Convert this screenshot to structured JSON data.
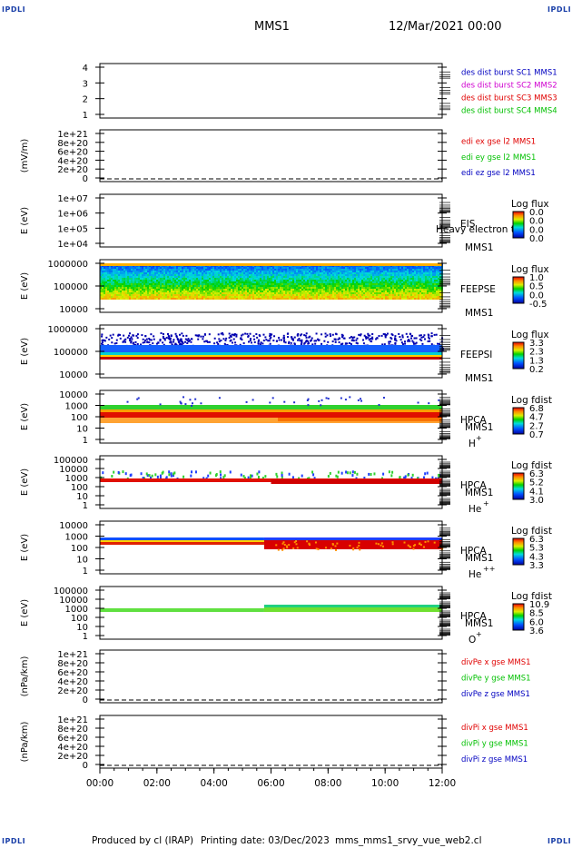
{
  "header": {
    "corner_label": "IPDLI",
    "spacecraft": "MMS1",
    "datetime": "12/Mar/2021 00:00"
  },
  "footer": {
    "produced": "Produced by cl (IRAP)",
    "printing": "Printing date: 03/Dec/2023",
    "script": "mms_mms1_srvy_vue_web2.cl"
  },
  "colors": {
    "red": "#e00000",
    "green": "#00c000",
    "blue": "#0000c0",
    "magenta": "#d000d0"
  },
  "chart_data": [
    {
      "type": "line",
      "ylim": [
        1,
        4
      ],
      "yticks": [
        "4",
        "3",
        "2",
        "1"
      ],
      "labels": [
        {
          "text": "des dist burst SC1 MMS1",
          "color": "#0000c0"
        },
        {
          "text": "des dist burst SC2 MMS2",
          "color": "#d000d0"
        },
        {
          "text": "des dist burst SC3 MMS3",
          "color": "#e00000"
        },
        {
          "text": "des dist burst SC4 MMS4",
          "color": "#00c000"
        }
      ]
    },
    {
      "type": "line",
      "ylabel": "(mV/m)",
      "yticks": [
        "1e+21",
        "8e+20",
        "6e+20",
        "4e+20",
        "2e+20",
        "0"
      ],
      "dashed_zero": true,
      "labels": [
        {
          "text": "edi ex gse l2 MMS1",
          "color": "#e00000"
        },
        {
          "text": "edi ey gse l2 MMS1",
          "color": "#00c000"
        },
        {
          "text": "edi ez gse l2 MMS1",
          "color": "#0000c0"
        }
      ]
    },
    {
      "type": "heatmap",
      "ylabel": "E (eV)",
      "yticks": [
        "1e+07",
        "1e+06",
        "1e+05",
        "1e+04"
      ],
      "instrument": "EIS",
      "overlay": "Heavy electron to",
      "spacecraft": "MMS1",
      "colorbar_title": "Log flux",
      "colorbar_ticks": [
        "0.0",
        "0.0",
        "0.0",
        "0.0"
      ]
    },
    {
      "type": "heatmap",
      "ylabel": "E (eV)",
      "yticks": [
        "1000000",
        "100000",
        "10000"
      ],
      "instrument": "FEEPSE",
      "spacecraft": "MMS1",
      "colorbar_title": "Log flux",
      "colorbar_ticks": [
        "1.0",
        "0.5",
        "0.0",
        "-0.5"
      ]
    },
    {
      "type": "heatmap",
      "ylabel": "E (eV)",
      "yticks": [
        "1000000",
        "100000",
        "10000"
      ],
      "instrument": "FEEPSI",
      "spacecraft": "MMS1",
      "colorbar_title": "Log flux",
      "colorbar_ticks": [
        "3.3",
        "2.3",
        "1.3",
        "0.2"
      ]
    },
    {
      "type": "heatmap",
      "ylabel": "E (eV)",
      "yticks": [
        "10000",
        "1000",
        "100",
        "10",
        "1"
      ],
      "instrument": "HPCA",
      "spacecraft": "MMS1",
      "species": "H",
      "charge": "+",
      "colorbar_title": "Log fdist",
      "colorbar_ticks": [
        "6.8",
        "4.7",
        "2.7",
        "0.7"
      ]
    },
    {
      "type": "heatmap",
      "ylabel": "E (eV)",
      "yticks": [
        "100000",
        "10000",
        "1000",
        "100",
        "10",
        "1"
      ],
      "instrument": "HPCA",
      "spacecraft": "MMS1",
      "species": "He",
      "charge": "+",
      "colorbar_title": "Log fdist",
      "colorbar_ticks": [
        "6.3",
        "5.2",
        "4.1",
        "3.0"
      ]
    },
    {
      "type": "heatmap",
      "ylabel": "E (eV)",
      "yticks": [
        "10000",
        "1000",
        "100",
        "10",
        "1"
      ],
      "instrument": "HPCA",
      "spacecraft": "MMS1",
      "species": "He",
      "charge": "++",
      "colorbar_title": "Log fdist",
      "colorbar_ticks": [
        "6.3",
        "5.3",
        "4.3",
        "3.3"
      ]
    },
    {
      "type": "heatmap",
      "ylabel": "E (eV)",
      "yticks": [
        "100000",
        "10000",
        "1000",
        "100",
        "10",
        "1"
      ],
      "instrument": "HPCA",
      "spacecraft": "MMS1",
      "species": "O",
      "charge": "+",
      "colorbar_title": "Log fdist",
      "colorbar_ticks": [
        "10.9",
        "8.5",
        "6.0",
        "3.6"
      ]
    },
    {
      "type": "line",
      "ylabel": "(nPa/km)",
      "yticks": [
        "1e+21",
        "8e+20",
        "6e+20",
        "4e+20",
        "2e+20",
        "0"
      ],
      "dashed_zero": true,
      "labels": [
        {
          "text": "divPe x gse MMS1",
          "color": "#e00000"
        },
        {
          "text": "divPe y gse MMS1",
          "color": "#00c000"
        },
        {
          "text": "divPe z gse MMS1",
          "color": "#0000c0"
        }
      ]
    },
    {
      "type": "line",
      "ylabel": "(nPa/km)",
      "yticks": [
        "1e+21",
        "8e+20",
        "6e+20",
        "4e+20",
        "2e+20",
        "0"
      ],
      "dashed_zero": true,
      "labels": [
        {
          "text": "divPi x gse MMS1",
          "color": "#e00000"
        },
        {
          "text": "divPi y gse MMS1",
          "color": "#00c000"
        },
        {
          "text": "divPi z gse MMS1",
          "color": "#0000c0"
        }
      ],
      "xticks": [
        "00:00",
        "02:00",
        "04:00",
        "06:00",
        "08:00",
        "10:00",
        "12:00"
      ]
    }
  ]
}
